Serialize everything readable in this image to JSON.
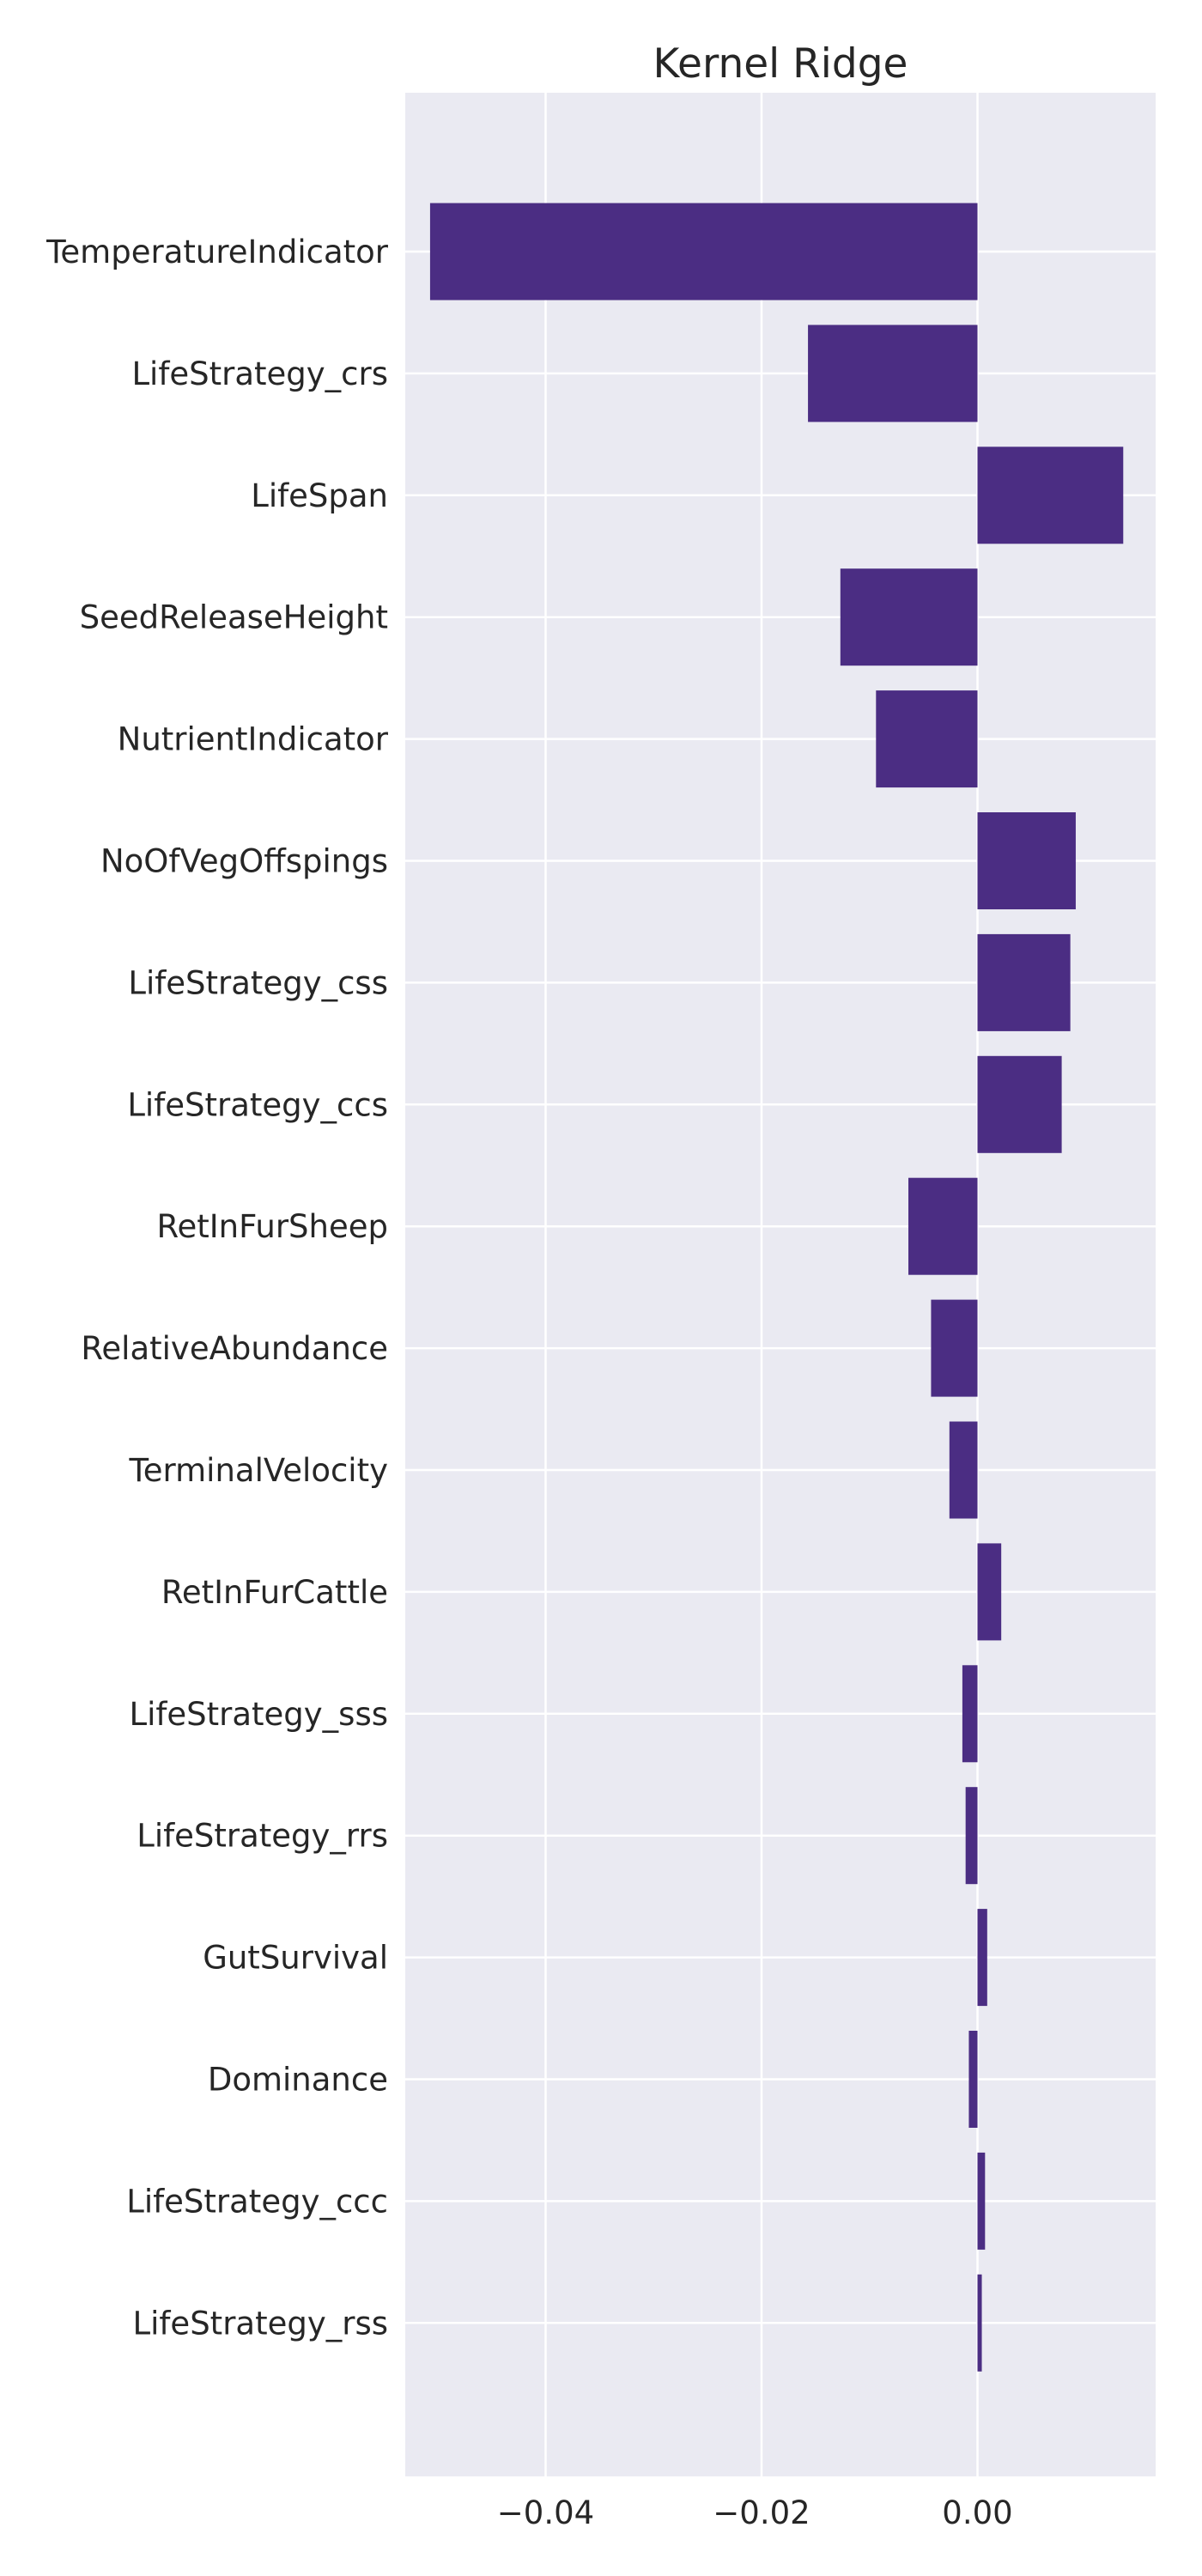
{
  "chart_data": {
    "type": "bar",
    "orientation": "horizontal",
    "title": "Kernel Ridge",
    "xlabel": "",
    "ylabel": "",
    "xlim": [
      -0.053,
      0.0165
    ],
    "x_ticks": [
      -0.04,
      -0.02,
      0.0
    ],
    "x_tick_labels": [
      "−0.04",
      "−0.02",
      "0.00"
    ],
    "grid": true,
    "legend": "none",
    "colors": {
      "bar": "#4b2d83",
      "background": "#eaeaf2",
      "grid": "#ffffff"
    },
    "categories": [
      "TemperatureIndicator",
      "LifeStrategy_crs",
      "LifeSpan",
      "SeedReleaseHeight",
      "NutrientIndicator",
      "NoOfVegOffspings",
      "LifeStrategy_css",
      "LifeStrategy_ccs",
      "RetInFurSheep",
      "RelativeAbundance",
      "TerminalVelocity",
      "RetInFurCattle",
      "LifeStrategy_sss",
      "LifeStrategy_rrs",
      "GutSurvival",
      "Dominance",
      "LifeStrategy_ccc",
      "LifeStrategy_rss"
    ],
    "values": [
      -0.0507,
      -0.0157,
      0.0135,
      -0.0127,
      -0.0094,
      0.0091,
      0.0086,
      0.0078,
      -0.0064,
      -0.0043,
      -0.0026,
      0.0022,
      -0.0014,
      -0.0011,
      0.0009,
      -0.0008,
      0.0007,
      0.0004
    ]
  }
}
